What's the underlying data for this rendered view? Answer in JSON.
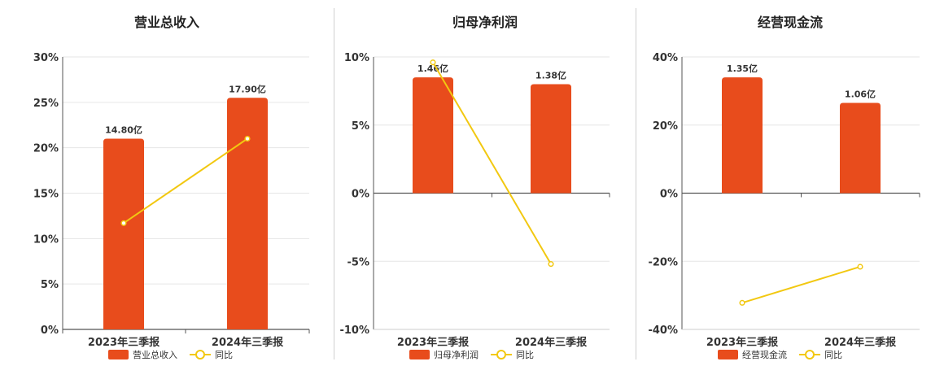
{
  "colors": {
    "bar": "#e84c1c",
    "line": "#f2c811",
    "grid": "#e6e6e6",
    "axis": "#555555"
  },
  "chart_data": [
    {
      "type": "bar",
      "title": "营业总收入",
      "categories": [
        "2023年三季报",
        "2024年三季报"
      ],
      "series": [
        {
          "name": "营业总收入",
          "type": "bar",
          "values": [
            14.8,
            17.9
          ],
          "labels": [
            "14.80亿",
            "17.90亿"
          ]
        },
        {
          "name": "同比",
          "type": "line",
          "values": [
            11.7,
            21.0
          ]
        }
      ],
      "ylim": [
        0,
        30
      ],
      "yticks": [
        0,
        5,
        10,
        15,
        20,
        25,
        30
      ],
      "ytick_labels": [
        "0%",
        "5%",
        "10%",
        "15%",
        "20%",
        "25%",
        "30%"
      ],
      "bar_pct": [
        21.0,
        25.5
      ],
      "grid": true,
      "legend_position": "bottom"
    },
    {
      "type": "bar",
      "title": "归母净利润",
      "categories": [
        "2023年三季报",
        "2024年三季报"
      ],
      "series": [
        {
          "name": "归母净利润",
          "type": "bar",
          "values": [
            1.46,
            1.38
          ],
          "labels": [
            "1.46亿",
            "1.38亿"
          ]
        },
        {
          "name": "同比",
          "type": "line",
          "values": [
            9.6,
            -5.2
          ]
        }
      ],
      "ylim": [
        -10,
        10
      ],
      "yticks": [
        -10,
        -5,
        0,
        5,
        10
      ],
      "ytick_labels": [
        "-10%",
        "-5%",
        "0%",
        "5%",
        "10%"
      ],
      "bar_pct": [
        8.5,
        8.0
      ],
      "grid": true,
      "legend_position": "bottom"
    },
    {
      "type": "bar",
      "title": "经营现金流",
      "categories": [
        "2023年三季报",
        "2024年三季报"
      ],
      "series": [
        {
          "name": "经营现金流",
          "type": "bar",
          "values": [
            1.35,
            1.06
          ],
          "labels": [
            "1.35亿",
            "1.06亿"
          ]
        },
        {
          "name": "同比",
          "type": "line",
          "values": [
            -32.2,
            -21.6
          ]
        }
      ],
      "ylim": [
        -40,
        40
      ],
      "yticks": [
        -40,
        -20,
        0,
        20,
        40
      ],
      "ytick_labels": [
        "-40%",
        "-20%",
        "0%",
        "20%",
        "40%"
      ],
      "bar_pct": [
        34.0,
        26.5
      ],
      "grid": true,
      "legend_position": "bottom"
    }
  ]
}
